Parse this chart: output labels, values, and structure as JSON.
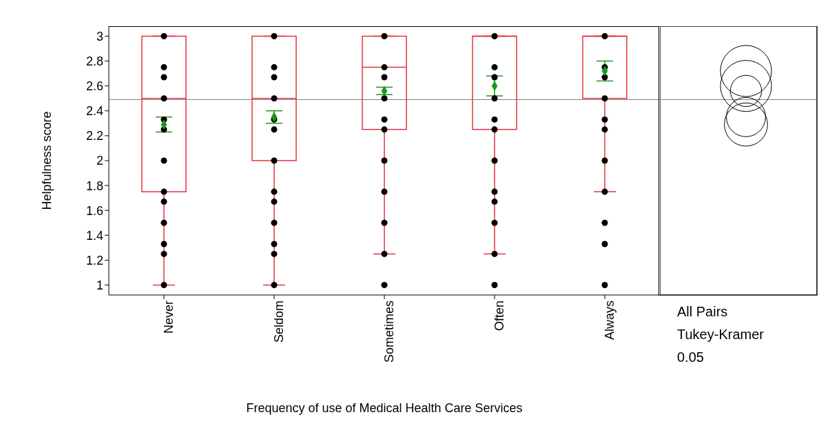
{
  "chart_data": {
    "type": "box",
    "xlabel": "Frequency of use of Medical Health Care Services",
    "ylabel": "Helpfulness score",
    "categories": [
      "Never",
      "Seldom",
      "Sometimes",
      "Often",
      "Always"
    ],
    "ylim": [
      0.92,
      3.08
    ],
    "yticks": [
      1,
      1.2,
      1.4,
      1.6,
      1.8,
      2,
      2.2,
      2.4,
      2.6,
      2.8,
      3
    ],
    "grid": false,
    "legend": false,
    "series": [
      {
        "color": "#e8303f",
        "boxes": [
          {
            "low": 1,
            "q1": 1.75,
            "median": 2.5,
            "q3": 3,
            "high": 3
          },
          {
            "low": 1,
            "q1": 2,
            "median": 2.5,
            "q3": 3,
            "high": 3
          },
          {
            "low": 1.25,
            "q1": 2.25,
            "median": 2.75,
            "q3": 3,
            "high": 3
          },
          {
            "low": 1.25,
            "q1": 2.25,
            "median": 3,
            "q3": 3,
            "high": 3
          },
          {
            "low": 1.75,
            "q1": 2.5,
            "median": 3,
            "q3": 3,
            "high": 3
          }
        ]
      },
      {
        "type": "scatter",
        "color": "#000000",
        "marker": "circle",
        "x": [
          "Never",
          "Never",
          "Never",
          "Never",
          "Never",
          "Never",
          "Never",
          "Never",
          "Never",
          "Never",
          "Never",
          "Never",
          "Never",
          "Seldom",
          "Seldom",
          "Seldom",
          "Seldom",
          "Seldom",
          "Seldom",
          "Seldom",
          "Seldom",
          "Seldom",
          "Seldom",
          "Seldom",
          "Seldom",
          "Seldom",
          "Sometimes",
          "Sometimes",
          "Sometimes",
          "Sometimes",
          "Sometimes",
          "Sometimes",
          "Sometimes",
          "Sometimes",
          "Sometimes",
          "Sometimes",
          "Sometimes",
          "Often",
          "Often",
          "Often",
          "Often",
          "Often",
          "Often",
          "Often",
          "Often",
          "Often",
          "Often",
          "Often",
          "Often",
          "Always",
          "Always",
          "Always",
          "Always",
          "Always",
          "Always",
          "Always",
          "Always",
          "Always",
          "Always",
          "Always"
        ],
        "values": [
          3,
          2.75,
          2.67,
          2.5,
          2.33,
          2.25,
          2,
          1.75,
          1.67,
          1.5,
          1.33,
          1.25,
          1,
          3,
          2.75,
          2.67,
          2.5,
          2.33,
          2.25,
          2,
          1.75,
          1.67,
          1.5,
          1.33,
          1.25,
          1,
          3,
          2.75,
          2.67,
          2.5,
          2.33,
          2.25,
          2,
          1.75,
          1.5,
          1.25,
          1,
          3,
          2.75,
          2.67,
          2.5,
          2.33,
          2.25,
          2,
          1.75,
          1.67,
          1.5,
          1.25,
          1,
          3,
          2.75,
          2.67,
          2.5,
          2.33,
          2.25,
          2,
          1.75,
          1.5,
          1.33,
          1
        ]
      },
      {
        "type": "scatter",
        "color": "#1a9a1a",
        "marker": "diamond",
        "x": [
          "Never",
          "Seldom",
          "Sometimes",
          "Often",
          "Always"
        ],
        "values": [
          2.29,
          2.35,
          2.56,
          2.6,
          2.72
        ],
        "errors": [
          0.06,
          0.05,
          0.03,
          0.08,
          0.08
        ]
      }
    ],
    "ref_lines": [
      {
        "axis": "y",
        "value": 2.49,
        "color": "#808080"
      }
    ],
    "annotations": [
      "All Pairs",
      "Tukey-Kramer",
      "0.05"
    ]
  }
}
